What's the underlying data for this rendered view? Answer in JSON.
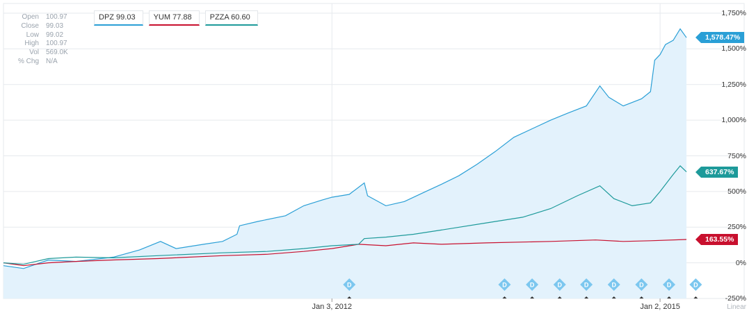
{
  "ohlc": [
    {
      "label": "Open",
      "value": "100.97"
    },
    {
      "label": "Close",
      "value": "99.03"
    },
    {
      "label": "Low",
      "value": "99.02"
    },
    {
      "label": "High",
      "value": "100.97"
    },
    {
      "label": "Vol",
      "value": "569.0K"
    },
    {
      "label": "% Chg",
      "value": "N/A"
    }
  ],
  "legend": [
    {
      "text": "DPZ 99.03",
      "color": "#2a9fd6"
    },
    {
      "text": "YUM 77.88",
      "color": "#c8102e"
    },
    {
      "text": "PZZA 60.60",
      "color": "#1d9a9a"
    }
  ],
  "scale_label": "Linear",
  "chart_data": {
    "type": "line",
    "x_start": "2009-01-02",
    "x_end": "2015-03-31",
    "x_ticks": [
      {
        "date": "2012-01-03",
        "label": "Jan 3, 2012"
      },
      {
        "date": "2015-01-02",
        "label": "Jan 2, 2015"
      }
    ],
    "ylim": [
      -250,
      1750
    ],
    "y_ticks": [
      {
        "value": 1750,
        "label": "1,750%"
      },
      {
        "value": 1500,
        "label": "1,500%"
      },
      {
        "value": 1250,
        "label": "1,250%"
      },
      {
        "value": 1000,
        "label": "1,000%"
      },
      {
        "value": 750,
        "label": "750%"
      },
      {
        "value": 500,
        "label": "500%"
      },
      {
        "value": 250,
        "label": "250%"
      },
      {
        "value": 0,
        "label": "0%"
      },
      {
        "value": -250,
        "label": "-250%"
      }
    ],
    "grid": true,
    "series": [
      {
        "name": "DPZ",
        "color": "#2a9fd6",
        "fill": "#e3f2fc",
        "end_label": "1,578.47%",
        "points": [
          [
            "2009-01-02",
            -20
          ],
          [
            "2009-03-10",
            -40
          ],
          [
            "2009-06-01",
            20
          ],
          [
            "2009-09-01",
            10
          ],
          [
            "2010-01-04",
            40
          ],
          [
            "2010-04-01",
            90
          ],
          [
            "2010-06-10",
            150
          ],
          [
            "2010-08-01",
            100
          ],
          [
            "2010-11-01",
            130
          ],
          [
            "2011-01-03",
            150
          ],
          [
            "2011-02-20",
            200
          ],
          [
            "2011-03-01",
            260
          ],
          [
            "2011-05-01",
            290
          ],
          [
            "2011-08-01",
            330
          ],
          [
            "2011-10-01",
            400
          ],
          [
            "2011-12-01",
            440
          ],
          [
            "2012-01-03",
            460
          ],
          [
            "2012-03-01",
            480
          ],
          [
            "2012-04-20",
            560
          ],
          [
            "2012-05-01",
            470
          ],
          [
            "2012-07-01",
            400
          ],
          [
            "2012-09-01",
            430
          ],
          [
            "2012-11-01",
            490
          ],
          [
            "2013-01-02",
            550
          ],
          [
            "2013-03-01",
            610
          ],
          [
            "2013-05-01",
            690
          ],
          [
            "2013-07-01",
            780
          ],
          [
            "2013-09-01",
            880
          ],
          [
            "2013-11-01",
            940
          ],
          [
            "2014-01-02",
            1000
          ],
          [
            "2014-03-01",
            1050
          ],
          [
            "2014-05-01",
            1100
          ],
          [
            "2014-06-15",
            1240
          ],
          [
            "2014-07-15",
            1160
          ],
          [
            "2014-09-01",
            1100
          ],
          [
            "2014-11-01",
            1150
          ],
          [
            "2014-12-01",
            1200
          ],
          [
            "2014-12-15",
            1420
          ],
          [
            "2015-01-02",
            1460
          ],
          [
            "2015-01-20",
            1530
          ],
          [
            "2015-02-15",
            1560
          ],
          [
            "2015-03-10",
            1640
          ],
          [
            "2015-03-31",
            1578.47
          ]
        ]
      },
      {
        "name": "YUM",
        "color": "#c8102e",
        "end_label": "163.55%",
        "points": [
          [
            "2009-01-02",
            0
          ],
          [
            "2009-03-10",
            -20
          ],
          [
            "2009-06-01",
            0
          ],
          [
            "2009-09-01",
            10
          ],
          [
            "2010-01-04",
            20
          ],
          [
            "2010-06-01",
            30
          ],
          [
            "2011-01-03",
            50
          ],
          [
            "2011-06-01",
            60
          ],
          [
            "2011-10-01",
            80
          ],
          [
            "2012-01-03",
            100
          ],
          [
            "2012-04-01",
            130
          ],
          [
            "2012-07-01",
            120
          ],
          [
            "2012-10-01",
            140
          ],
          [
            "2013-01-02",
            130
          ],
          [
            "2013-06-01",
            140
          ],
          [
            "2014-01-02",
            150
          ],
          [
            "2014-06-01",
            160
          ],
          [
            "2014-09-01",
            150
          ],
          [
            "2014-12-01",
            155
          ],
          [
            "2015-03-31",
            163.55
          ]
        ]
      },
      {
        "name": "PZZA",
        "color": "#1d9a9a",
        "end_label": "637.67%",
        "points": [
          [
            "2009-01-02",
            0
          ],
          [
            "2009-03-10",
            -10
          ],
          [
            "2009-06-01",
            30
          ],
          [
            "2009-09-01",
            40
          ],
          [
            "2010-01-04",
            35
          ],
          [
            "2010-06-01",
            50
          ],
          [
            "2011-01-03",
            70
          ],
          [
            "2011-06-01",
            80
          ],
          [
            "2011-10-01",
            100
          ],
          [
            "2012-01-03",
            120
          ],
          [
            "2012-04-01",
            130
          ],
          [
            "2012-04-20",
            170
          ],
          [
            "2012-07-01",
            180
          ],
          [
            "2012-10-01",
            200
          ],
          [
            "2013-01-02",
            230
          ],
          [
            "2013-06-01",
            280
          ],
          [
            "2013-10-01",
            320
          ],
          [
            "2014-01-02",
            380
          ],
          [
            "2014-04-01",
            470
          ],
          [
            "2014-06-15",
            540
          ],
          [
            "2014-08-01",
            450
          ],
          [
            "2014-10-01",
            400
          ],
          [
            "2014-12-01",
            420
          ],
          [
            "2015-01-02",
            500
          ],
          [
            "2015-02-15",
            620
          ],
          [
            "2015-03-10",
            680
          ],
          [
            "2015-03-31",
            637.67
          ]
        ]
      }
    ],
    "dividend_markers": {
      "label": "D",
      "dates": [
        "2012-03-01",
        "2013-08-01",
        "2013-11-01",
        "2014-02-01",
        "2014-05-01",
        "2014-08-01",
        "2014-11-01",
        "2015-02-01",
        "2015-05-01"
      ]
    }
  }
}
